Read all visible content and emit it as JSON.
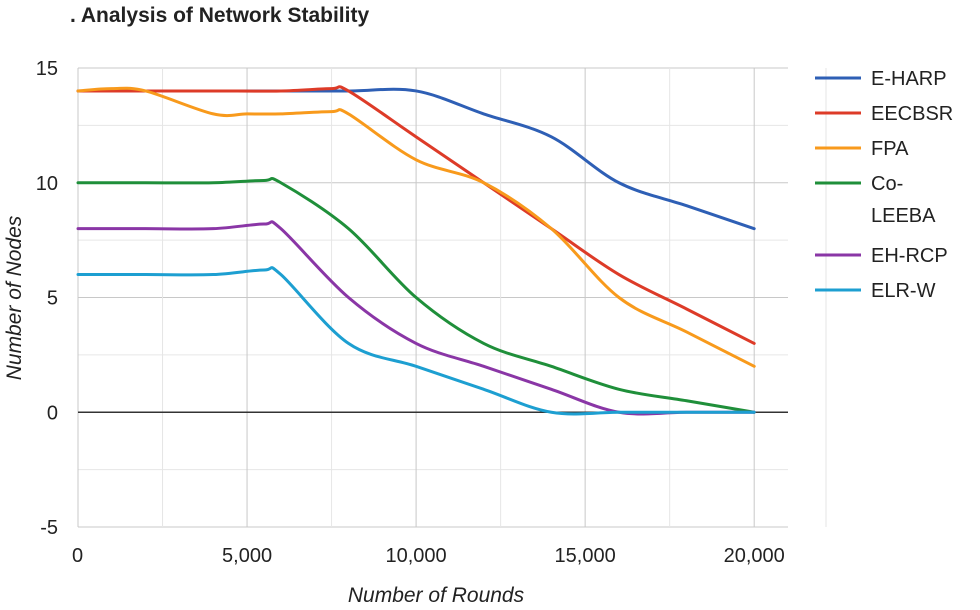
{
  "chart_data": {
    "type": "line",
    "title": ". Analysis of Network Stability",
    "xlabel": "Number of Rounds",
    "ylabel": "Number of Nodes",
    "xlim": [
      0,
      21000
    ],
    "ylim": [
      -5,
      15
    ],
    "x_ticks": [
      0,
      5000,
      10000,
      15000,
      20000
    ],
    "x_tick_labels": [
      "0",
      "5,000",
      "10,000",
      "15,000",
      "20,000"
    ],
    "y_ticks": [
      -5,
      0,
      5,
      10,
      15
    ],
    "y_tick_labels": [
      "-5",
      "0",
      "5",
      "10",
      "15"
    ],
    "grid": true,
    "legend_position": "right",
    "series": [
      {
        "name": "E-HARP",
        "legend_lines": [
          "E-HARP"
        ],
        "color": "#2e5fb5",
        "x": [
          0,
          2000,
          4000,
          6000,
          8000,
          10000,
          12000,
          14000,
          16000,
          18000,
          20000
        ],
        "y": [
          14,
          14,
          14,
          14,
          14,
          14,
          13,
          12,
          10,
          9,
          8
        ]
      },
      {
        "name": "EECBSR",
        "legend_lines": [
          "EECBSR"
        ],
        "color": "#dd3b28",
        "x": [
          0,
          2000,
          4000,
          6000,
          7500,
          8000,
          10000,
          12000,
          14000,
          16000,
          18000,
          20000
        ],
        "y": [
          14,
          14,
          14,
          14,
          14.1,
          14,
          12,
          10,
          8,
          6,
          4.5,
          3
        ]
      },
      {
        "name": "FPA",
        "legend_lines": [
          "FPA"
        ],
        "color": "#f89a1c",
        "x": [
          0,
          1000,
          2000,
          4000,
          5000,
          6000,
          7500,
          8000,
          10000,
          12000,
          14000,
          16000,
          18000,
          20000
        ],
        "y": [
          14,
          14.1,
          14,
          13,
          13,
          13,
          13.1,
          13,
          11,
          10,
          8,
          5,
          3.5,
          2
        ]
      },
      {
        "name": "Co-LEEBA",
        "legend_lines": [
          "Co-",
          "LEEBA"
        ],
        "color": "#1f8f3a",
        "x": [
          0,
          2000,
          4000,
          5500,
          6000,
          8000,
          10000,
          12000,
          14000,
          16000,
          18000,
          20000
        ],
        "y": [
          10,
          10,
          10,
          10.1,
          10,
          8,
          5,
          3,
          2,
          1,
          0.5,
          0
        ]
      },
      {
        "name": "EH-RCP",
        "legend_lines": [
          "EH-RCP"
        ],
        "color": "#8a36a6",
        "x": [
          0,
          2000,
          4000,
          5500,
          6000,
          8000,
          10000,
          12000,
          14000,
          16000,
          18000,
          20000
        ],
        "y": [
          8,
          8,
          8,
          8.2,
          8,
          5,
          3,
          2,
          1,
          0,
          0,
          0
        ]
      },
      {
        "name": "ELR-W",
        "legend_lines": [
          "ELR-W"
        ],
        "color": "#1d9fd1",
        "x": [
          0,
          2000,
          4000,
          5500,
          6000,
          8000,
          10000,
          12000,
          14000,
          16000,
          18000,
          20000
        ],
        "y": [
          6,
          6,
          6,
          6.2,
          6,
          3,
          2,
          1,
          0,
          0,
          0,
          0
        ]
      }
    ]
  }
}
